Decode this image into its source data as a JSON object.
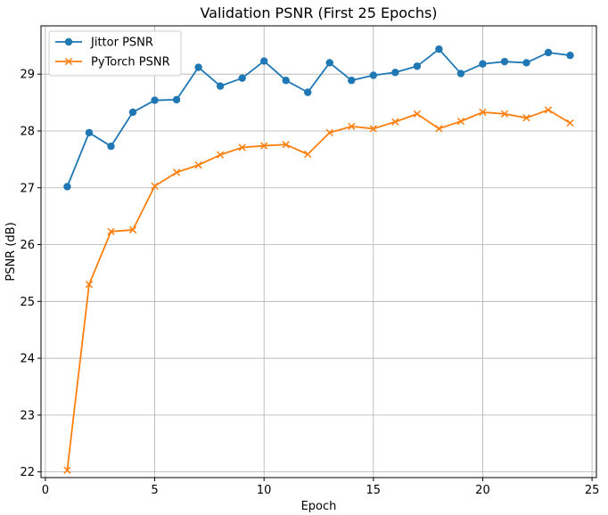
{
  "chart_data": {
    "type": "line",
    "title": "Validation PSNR (First 25 Epochs)",
    "xlabel": "Epoch",
    "ylabel": "PSNR (dB)",
    "xlim": [
      -0.2,
      25.2
    ],
    "ylim": [
      21.9,
      29.85
    ],
    "xticks": [
      0,
      5,
      10,
      15,
      20,
      25
    ],
    "yticks": [
      22,
      23,
      24,
      25,
      26,
      27,
      28,
      29
    ],
    "grid": true,
    "legend_position": "top-left",
    "x": [
      1,
      2,
      3,
      4,
      5,
      6,
      7,
      8,
      9,
      10,
      11,
      12,
      13,
      14,
      15,
      16,
      17,
      18,
      19,
      20,
      21,
      22,
      23,
      24
    ],
    "series": [
      {
        "name": "Jittor PSNR",
        "color": "#1f77b4",
        "marker": "circle",
        "values": [
          27.02,
          27.97,
          27.73,
          28.33,
          28.54,
          28.55,
          29.12,
          28.79,
          28.93,
          29.23,
          28.89,
          28.68,
          29.2,
          28.89,
          28.98,
          29.03,
          29.14,
          29.44,
          29.01,
          29.18,
          29.22,
          29.2,
          29.38,
          29.33
        ]
      },
      {
        "name": "PyTorch PSNR",
        "color": "#ff7f0e",
        "marker": "x",
        "values": [
          22.03,
          25.3,
          26.23,
          26.26,
          27.03,
          27.27,
          27.4,
          27.58,
          27.71,
          27.74,
          27.76,
          27.59,
          27.97,
          28.08,
          28.04,
          28.16,
          28.3,
          28.04,
          28.17,
          28.33,
          28.3,
          28.23,
          28.37,
          28.14
        ]
      }
    ]
  }
}
